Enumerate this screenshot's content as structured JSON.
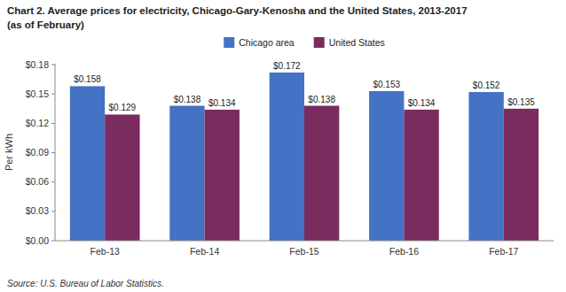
{
  "chart_data": {
    "type": "bar",
    "title": "Chart 2. Average prices for electricity, Chicago-Gary-Kenosha  and the United States, 2013-2017",
    "subtitle": "(as of February)",
    "y_label": "Per kWh",
    "annotations": [
      "Source: U.S. Bureau of Labor Statistics."
    ],
    "categories": [
      "Feb-13",
      "Feb-14",
      "Feb-15",
      "Feb-16",
      "Feb-17"
    ],
    "series": [
      {
        "name": "Chicago area",
        "color": "#4472C4",
        "values": [
          0.158,
          0.138,
          0.172,
          0.153,
          0.152
        ],
        "value_labels": [
          "$0.158",
          "$0.138",
          "$0.172",
          "$0.153",
          "$0.152"
        ]
      },
      {
        "name": "United States",
        "color": "#7B2C5E",
        "values": [
          0.129,
          0.134,
          0.138,
          0.134,
          0.135
        ],
        "value_labels": [
          "$0.129",
          "$0.134",
          "$0.138",
          "$0.134",
          "$0.135"
        ]
      }
    ],
    "ylim": [
      0,
      0.181
    ],
    "yticks": [
      {
        "value": 0.0,
        "label": "$0.00"
      },
      {
        "value": 0.03,
        "label": "$0.03"
      },
      {
        "value": 0.06,
        "label": "$0.06"
      },
      {
        "value": 0.09,
        "label": "$0.09"
      },
      {
        "value": 0.12,
        "label": "$0.12"
      },
      {
        "value": 0.15,
        "label": "$0.15"
      },
      {
        "value": 0.18,
        "label": "$0.18"
      }
    ],
    "grid": false,
    "legend": "top",
    "data_labels": true
  }
}
